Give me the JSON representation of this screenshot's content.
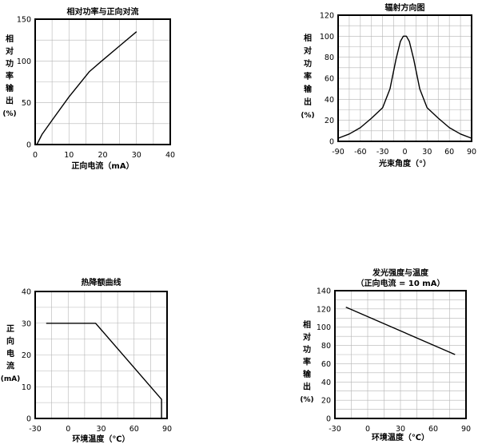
{
  "chart_data": [
    {
      "type": "line",
      "title": "相对功率与正向对流",
      "subtitle": "",
      "xlabel": "正向电流（mA）",
      "ylabel": "相对功率输出（%）",
      "ylabel_chars": [
        "相",
        "对",
        "功",
        "率",
        "输",
        "出",
        "(%)"
      ],
      "xlim": [
        0,
        40
      ],
      "ylim": [
        0,
        150
      ],
      "xticks": [
        0,
        10,
        20,
        30,
        40
      ],
      "xtick_labels": [
        "0",
        "10",
        "20",
        "30",
        "40"
      ],
      "yticks": [
        0,
        50,
        100,
        150
      ],
      "ytick_labels": [
        "0",
        "50",
        "100",
        "150"
      ],
      "grid": true,
      "x": [
        0.5,
        2,
        5,
        10,
        16,
        20,
        25,
        30
      ],
      "y": [
        0,
        12,
        29,
        57,
        87,
        101,
        118,
        135
      ]
    },
    {
      "type": "line",
      "title": "辐射方向图",
      "subtitle": "",
      "xlabel": "光束角度（°）",
      "ylabel": "相对功率输出（%）",
      "ylabel_chars": [
        "相",
        "对",
        "功",
        "率",
        "输",
        "出",
        "(%)"
      ],
      "xlim": [
        -90,
        90
      ],
      "ylim": [
        0,
        120
      ],
      "xticks": [
        -90,
        -60,
        -30,
        0,
        30,
        60,
        90
      ],
      "xtick_labels": [
        "-90",
        "-60",
        "-30",
        "0",
        "30",
        "60",
        "90"
      ],
      "yticks": [
        0,
        20,
        40,
        60,
        80,
        100,
        120
      ],
      "ytick_labels": [
        "0",
        "20",
        "40",
        "60",
        "80",
        "100",
        "120"
      ],
      "grid": true,
      "x": [
        -90,
        -75,
        -60,
        -45,
        -30,
        -20,
        -12,
        -6,
        -2,
        0,
        2,
        6,
        12,
        20,
        30,
        45,
        60,
        75,
        90
      ],
      "y": [
        3,
        7,
        13,
        22,
        32,
        50,
        78,
        95,
        100,
        100,
        100,
        95,
        78,
        50,
        32,
        22,
        13,
        7,
        3
      ]
    },
    {
      "type": "line",
      "title": "热降额曲线",
      "subtitle": "",
      "xlabel": "环境温度（℃）",
      "ylabel": "正向电流（mA）",
      "ylabel_chars": [
        "正",
        "向",
        "电",
        "流",
        "(mA)"
      ],
      "xlim": [
        -30,
        90
      ],
      "ylim": [
        0,
        40
      ],
      "xticks": [
        -30,
        0,
        30,
        60,
        90
      ],
      "xtick_labels": [
        "-30",
        "0",
        "30",
        "60",
        "90"
      ],
      "yticks": [
        0,
        10,
        20,
        30,
        40
      ],
      "ytick_labels": [
        "0",
        "10",
        "20",
        "30",
        "40"
      ],
      "grid": true,
      "x": [
        -20,
        25,
        85,
        85
      ],
      "y": [
        30,
        30,
        6,
        0
      ]
    },
    {
      "type": "line",
      "title": "发光强度与温度",
      "subtitle": "（正向电流 = 10 mA）",
      "xlabel": "环境温度（℃）",
      "ylabel": "相对功率输出（%）",
      "ylabel_chars": [
        "相",
        "对",
        "功",
        "率",
        "输",
        "出",
        "(%)"
      ],
      "xlim": [
        -30,
        90
      ],
      "ylim": [
        0,
        140
      ],
      "xticks": [
        -30,
        0,
        30,
        60,
        90
      ],
      "xtick_labels": [
        "-30",
        "0",
        "30",
        "60",
        "90"
      ],
      "yticks": [
        0,
        20,
        40,
        60,
        80,
        100,
        120,
        140
      ],
      "ytick_labels": [
        "0",
        "20",
        "40",
        "60",
        "80",
        "100",
        "120",
        "140"
      ],
      "grid": true,
      "x": [
        -20,
        80
      ],
      "y": [
        122,
        70
      ]
    }
  ]
}
